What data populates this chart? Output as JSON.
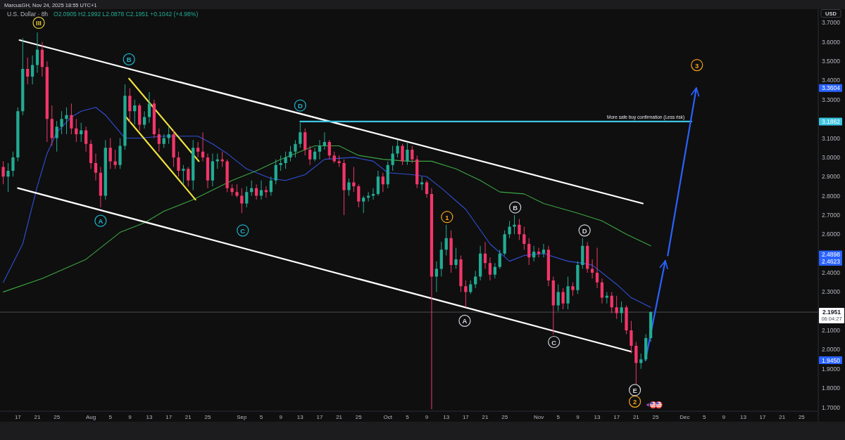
{
  "chart_data": {
    "type": "candlestick",
    "title": "U.S. Dollar · 8h",
    "subtitle": "O2.0905 H2.1992 L2.0878 C2.1951 +0.1042 (+4.98%)",
    "ylabel": "USD",
    "annotations": [
      "MarcusGH, Nov 24, 2025 18:55 UTC+1",
      {
        "text": "More safe buy confirmation (Less risk)",
        "x": "2025-11-23",
        "y": 3.1862
      },
      {
        "text": "III",
        "x": "2025-07-21T07:00",
        "y": 3.7
      },
      {
        "text": "A",
        "x": "2025-08-03",
        "y": 2.67
      },
      {
        "text": "B",
        "x": "2025-08-08T20:00",
        "y": 3.51
      },
      {
        "text": "C",
        "x": "2025-09-01T05:00",
        "y": 2.62
      },
      {
        "text": "D",
        "x": "2025-09-13",
        "y": 3.27
      },
      {
        "text": "1",
        "x": "2025-10-13T04:00",
        "y": 2.69
      },
      {
        "text": "2",
        "x": "2025-11-20T18:00",
        "y": 1.73
      },
      {
        "text": "3",
        "x": "2025-12-03T12:00",
        "y": 3.48
      },
      {
        "text": "A",
        "x": "2025-10-16T19:00",
        "y": 2.15
      },
      {
        "text": "B",
        "x": "2025-10-27T04:00",
        "y": 2.74
      },
      {
        "text": "C",
        "x": "2025-11-04T03:00",
        "y": 2.04
      },
      {
        "text": "D",
        "x": "2025-11-10T10:00",
        "y": 2.62
      },
      {
        "text": "E",
        "x": "2025-11-20T18:00",
        "y": 1.79
      }
    ],
    "x": [
      "2025-07-14",
      "2025-07-15",
      "2025-07-16",
      "2025-07-17",
      "2025-07-18",
      "2025-07-19",
      "2025-07-20",
      "2025-07-21",
      "2025-07-22",
      "2025-07-23",
      "2025-07-24",
      "2025-07-25",
      "2025-07-26",
      "2025-07-27",
      "2025-07-28",
      "2025-07-29",
      "2025-07-30",
      "2025-07-31",
      "2025-08-01",
      "2025-08-02",
      "2025-08-03",
      "2025-08-04",
      "2025-08-05",
      "2025-08-06",
      "2025-08-07",
      "2025-08-08",
      "2025-08-09",
      "2025-08-10",
      "2025-08-11",
      "2025-08-12",
      "2025-08-13",
      "2025-08-14",
      "2025-08-15",
      "2025-08-16",
      "2025-08-17",
      "2025-08-18",
      "2025-08-19",
      "2025-08-20",
      "2025-08-21",
      "2025-08-22",
      "2025-08-23",
      "2025-08-24",
      "2025-08-25",
      "2025-08-26",
      "2025-08-27",
      "2025-08-28",
      "2025-08-29",
      "2025-08-30",
      "2025-08-31",
      "2025-09-01",
      "2025-09-02",
      "2025-09-03",
      "2025-09-04",
      "2025-09-05",
      "2025-09-06",
      "2025-09-07",
      "2025-09-08",
      "2025-09-09",
      "2025-09-10",
      "2025-09-11",
      "2025-09-12",
      "2025-09-13",
      "2025-09-14",
      "2025-09-15",
      "2025-09-16",
      "2025-09-17",
      "2025-09-18",
      "2025-09-19",
      "2025-09-20",
      "2025-09-21",
      "2025-09-22",
      "2025-09-23",
      "2025-09-24",
      "2025-09-25",
      "2025-09-26",
      "2025-09-27",
      "2025-09-28",
      "2025-09-29",
      "2025-09-30",
      "2025-10-01",
      "2025-10-02",
      "2025-10-03",
      "2025-10-04",
      "2025-10-05",
      "2025-10-06",
      "2025-10-07",
      "2025-10-08",
      "2025-10-09",
      "2025-10-10",
      "2025-10-11",
      "2025-10-12",
      "2025-10-13",
      "2025-10-14",
      "2025-10-15",
      "2025-10-16",
      "2025-10-17",
      "2025-10-18",
      "2025-10-19",
      "2025-10-20",
      "2025-10-21",
      "2025-10-22",
      "2025-10-23",
      "2025-10-24",
      "2025-10-25",
      "2025-10-26",
      "2025-10-27",
      "2025-10-28",
      "2025-10-29",
      "2025-10-30",
      "2025-10-31",
      "2025-11-01",
      "2025-11-02",
      "2025-11-03",
      "2025-11-04",
      "2025-11-05",
      "2025-11-06",
      "2025-11-07",
      "2025-11-08",
      "2025-11-09",
      "2025-11-10",
      "2025-11-11",
      "2025-11-12",
      "2025-11-13",
      "2025-11-14",
      "2025-11-15",
      "2025-11-16",
      "2025-11-17",
      "2025-11-18",
      "2025-11-19",
      "2025-11-20",
      "2025-11-21",
      "2025-11-22",
      "2025-11-23",
      "2025-11-24"
    ],
    "ohlc": [
      [
        2.95,
        2.98,
        2.86,
        2.9
      ],
      [
        2.9,
        2.97,
        2.82,
        2.93
      ],
      [
        2.93,
        3.03,
        2.9,
        3.0
      ],
      [
        3.0,
        3.26,
        2.98,
        3.24
      ],
      [
        3.24,
        3.62,
        3.22,
        3.46
      ],
      [
        3.46,
        3.52,
        3.38,
        3.42
      ],
      [
        3.42,
        3.53,
        3.38,
        3.48
      ],
      [
        3.48,
        3.65,
        3.44,
        3.56
      ],
      [
        3.56,
        3.6,
        3.42,
        3.47
      ],
      [
        3.47,
        3.5,
        3.08,
        3.2
      ],
      [
        3.2,
        3.27,
        3.06,
        3.1
      ],
      [
        3.1,
        3.19,
        3.03,
        3.16
      ],
      [
        3.16,
        3.24,
        3.12,
        3.2
      ],
      [
        3.2,
        3.26,
        3.12,
        3.22
      ],
      [
        3.22,
        3.28,
        3.12,
        3.15
      ],
      [
        3.15,
        3.2,
        3.08,
        3.12
      ],
      [
        3.12,
        3.18,
        3.08,
        3.14
      ],
      [
        3.14,
        3.16,
        3.03,
        3.07
      ],
      [
        3.07,
        3.09,
        2.94,
        2.97
      ],
      [
        2.97,
        3.02,
        2.88,
        2.92
      ],
      [
        2.92,
        2.95,
        2.74,
        2.8
      ],
      [
        2.8,
        3.09,
        2.78,
        3.05
      ],
      [
        3.05,
        3.1,
        2.94,
        2.98
      ],
      [
        2.98,
        3.04,
        2.94,
        2.96
      ],
      [
        2.96,
        3.1,
        2.94,
        3.06
      ],
      [
        3.06,
        3.38,
        3.04,
        3.32
      ],
      [
        3.32,
        3.36,
        3.18,
        3.24
      ],
      [
        3.24,
        3.3,
        3.17,
        3.27
      ],
      [
        3.27,
        3.28,
        3.14,
        3.17
      ],
      [
        3.17,
        3.24,
        3.15,
        3.21
      ],
      [
        3.21,
        3.34,
        3.18,
        3.28
      ],
      [
        3.28,
        3.3,
        3.1,
        3.12
      ],
      [
        3.12,
        3.15,
        3.03,
        3.07
      ],
      [
        3.07,
        3.12,
        3.05,
        3.1
      ],
      [
        3.1,
        3.16,
        3.07,
        3.12
      ],
      [
        3.12,
        3.14,
        2.95,
        3.0
      ],
      [
        3.0,
        3.03,
        2.9,
        2.93
      ],
      [
        2.93,
        2.96,
        2.86,
        2.94
      ],
      [
        2.94,
        2.95,
        2.85,
        2.88
      ],
      [
        2.88,
        3.09,
        2.83,
        3.05
      ],
      [
        3.05,
        3.08,
        3.0,
        3.03
      ],
      [
        3.03,
        3.13,
        2.98,
        3.0
      ],
      [
        3.0,
        3.02,
        2.84,
        2.88
      ],
      [
        2.88,
        3.02,
        2.85,
        2.98
      ],
      [
        2.98,
        3.02,
        2.94,
        2.99
      ],
      [
        2.99,
        3.03,
        2.95,
        2.98
      ],
      [
        2.98,
        2.99,
        2.82,
        2.84
      ],
      [
        2.84,
        2.86,
        2.8,
        2.82
      ],
      [
        2.82,
        2.86,
        2.79,
        2.8
      ],
      [
        2.8,
        2.84,
        2.71,
        2.76
      ],
      [
        2.76,
        2.85,
        2.74,
        2.82
      ],
      [
        2.82,
        2.88,
        2.8,
        2.84
      ],
      [
        2.84,
        2.86,
        2.78,
        2.8
      ],
      [
        2.8,
        2.88,
        2.78,
        2.83
      ],
      [
        2.83,
        2.85,
        2.79,
        2.82
      ],
      [
        2.82,
        2.9,
        2.8,
        2.88
      ],
      [
        2.88,
        2.99,
        2.86,
        2.96
      ],
      [
        2.96,
        3.01,
        2.93,
        2.97
      ],
      [
        2.97,
        3.03,
        2.94,
        3.0
      ],
      [
        3.0,
        3.06,
        2.98,
        3.03
      ],
      [
        3.03,
        3.09,
        3.0,
        3.07
      ],
      [
        3.07,
        3.18,
        3.05,
        3.13
      ],
      [
        3.13,
        3.15,
        3.01,
        3.04
      ],
      [
        3.04,
        3.06,
        2.96,
        2.99
      ],
      [
        2.99,
        3.05,
        2.98,
        3.03
      ],
      [
        3.03,
        3.09,
        2.99,
        3.06
      ],
      [
        3.06,
        3.13,
        3.04,
        3.08
      ],
      [
        3.08,
        3.09,
        2.99,
        3.01
      ],
      [
        3.01,
        3.03,
        2.97,
        2.98
      ],
      [
        2.98,
        3.01,
        2.95,
        2.97
      ],
      [
        2.97,
        2.99,
        2.7,
        2.83
      ],
      [
        2.83,
        2.89,
        2.8,
        2.87
      ],
      [
        2.87,
        2.95,
        2.82,
        2.85
      ],
      [
        2.85,
        2.86,
        2.74,
        2.77
      ],
      [
        2.77,
        2.8,
        2.71,
        2.79
      ],
      [
        2.79,
        2.82,
        2.77,
        2.8
      ],
      [
        2.8,
        2.84,
        2.78,
        2.81
      ],
      [
        2.81,
        2.93,
        2.8,
        2.9
      ],
      [
        2.9,
        2.92,
        2.82,
        2.86
      ],
      [
        2.86,
        2.98,
        2.84,
        2.96
      ],
      [
        2.96,
        3.06,
        2.93,
        3.02
      ],
      [
        3.02,
        3.09,
        3.0,
        3.06
      ],
      [
        3.06,
        3.07,
        2.96,
        2.98
      ],
      [
        2.98,
        3.08,
        2.96,
        3.04
      ],
      [
        3.04,
        3.06,
        2.97,
        2.99
      ],
      [
        2.99,
        3.01,
        2.84,
        2.86
      ],
      [
        2.86,
        2.9,
        2.83,
        2.87
      ],
      [
        2.87,
        2.88,
        2.79,
        2.81
      ],
      [
        2.81,
        2.84,
        1.69,
        2.38
      ],
      [
        2.38,
        2.46,
        2.3,
        2.42
      ],
      [
        2.42,
        2.56,
        2.38,
        2.52
      ],
      [
        2.52,
        2.65,
        2.49,
        2.58
      ],
      [
        2.58,
        2.62,
        2.4,
        2.44
      ],
      [
        2.44,
        2.53,
        2.42,
        2.47
      ],
      [
        2.47,
        2.49,
        2.3,
        2.33
      ],
      [
        2.33,
        2.36,
        2.22,
        2.3
      ],
      [
        2.3,
        2.36,
        2.29,
        2.34
      ],
      [
        2.34,
        2.41,
        2.32,
        2.38
      ],
      [
        2.38,
        2.54,
        2.36,
        2.5
      ],
      [
        2.5,
        2.56,
        2.42,
        2.45
      ],
      [
        2.45,
        2.48,
        2.36,
        2.39
      ],
      [
        2.39,
        2.45,
        2.37,
        2.43
      ],
      [
        2.43,
        2.52,
        2.42,
        2.5
      ],
      [
        2.5,
        2.62,
        2.49,
        2.6
      ],
      [
        2.6,
        2.67,
        2.58,
        2.64
      ],
      [
        2.64,
        2.7,
        2.6,
        2.65
      ],
      [
        2.65,
        2.68,
        2.57,
        2.6
      ],
      [
        2.6,
        2.64,
        2.52,
        2.55
      ],
      [
        2.55,
        2.58,
        2.44,
        2.48
      ],
      [
        2.48,
        2.54,
        2.46,
        2.51
      ],
      [
        2.51,
        2.53,
        2.48,
        2.5
      ],
      [
        2.5,
        2.55,
        2.48,
        2.52
      ],
      [
        2.52,
        2.54,
        2.33,
        2.36
      ],
      [
        2.36,
        2.38,
        2.08,
        2.23
      ],
      [
        2.23,
        2.34,
        2.2,
        2.3
      ],
      [
        2.3,
        2.32,
        2.21,
        2.24
      ],
      [
        2.24,
        2.38,
        2.21,
        2.33
      ],
      [
        2.33,
        2.35,
        2.28,
        2.31
      ],
      [
        2.31,
        2.46,
        2.29,
        2.44
      ],
      [
        2.44,
        2.58,
        2.42,
        2.54
      ],
      [
        2.54,
        2.56,
        2.4,
        2.42
      ],
      [
        2.42,
        2.47,
        2.37,
        2.4
      ],
      [
        2.4,
        2.53,
        2.32,
        2.35
      ],
      [
        2.35,
        2.37,
        2.24,
        2.27
      ],
      [
        2.27,
        2.3,
        2.24,
        2.28
      ],
      [
        2.28,
        2.3,
        2.19,
        2.22
      ],
      [
        2.22,
        2.28,
        2.16,
        2.19
      ],
      [
        2.19,
        2.25,
        2.14,
        2.22
      ],
      [
        2.22,
        2.23,
        2.08,
        2.1
      ],
      [
        2.1,
        2.15,
        1.98,
        2.02
      ],
      [
        2.02,
        2.04,
        1.82,
        1.93
      ],
      [
        1.93,
        1.98,
        1.9,
        1.95
      ],
      [
        1.95,
        2.08,
        1.94,
        2.06
      ],
      [
        2.06,
        2.1992,
        2.04,
        2.1951
      ]
    ],
    "colors": [
      "#f23669",
      "#22ab94",
      "#22ab94",
      "#22ab94",
      "#22ab94",
      "#f23669",
      "#22ab94",
      "#22ab94",
      "#f23669",
      "#f23669",
      "#f23669",
      "#22ab94",
      "#22ab94",
      "#22ab94",
      "#f23669",
      "#f23669",
      "#22ab94",
      "#f23669",
      "#f23669",
      "#f23669",
      "#f23669",
      "#22ab94",
      "#f23669",
      "#f23669",
      "#22ab94",
      "#22ab94",
      "#f23669",
      "#22ab94",
      "#f23669",
      "#22ab94",
      "#22ab94",
      "#f23669",
      "#f23669",
      "#22ab94",
      "#22ab94",
      "#f23669",
      "#f23669",
      "#22ab94",
      "#f23669",
      "#22ab94",
      "#f23669",
      "#f23669",
      "#f23669",
      "#22ab94",
      "#22ab94",
      "#f23669",
      "#f23669",
      "#f23669",
      "#f23669",
      "#f23669",
      "#22ab94",
      "#22ab94",
      "#f23669",
      "#22ab94",
      "#f23669",
      "#22ab94",
      "#22ab94",
      "#22ab94",
      "#22ab94",
      "#22ab94",
      "#22ab94",
      "#22ab94",
      "#f23669",
      "#f23669",
      "#22ab94",
      "#22ab94",
      "#22ab94",
      "#f23669",
      "#f23669",
      "#f23669",
      "#f23669",
      "#22ab94",
      "#f23669",
      "#f23669",
      "#22ab94",
      "#22ab94",
      "#22ab94",
      "#22ab94",
      "#f23669",
      "#22ab94",
      "#22ab94",
      "#22ab94",
      "#f23669",
      "#22ab94",
      "#f23669",
      "#f23669",
      "#22ab94",
      "#f23669",
      "#f23669",
      "#22ab94",
      "#22ab94",
      "#22ab94",
      "#f23669",
      "#22ab94",
      "#f23669",
      "#f23669",
      "#22ab94",
      "#22ab94",
      "#22ab94",
      "#f23669",
      "#f23669",
      "#22ab94",
      "#22ab94",
      "#22ab94",
      "#22ab94",
      "#22ab94",
      "#f23669",
      "#f23669",
      "#f23669",
      "#22ab94",
      "#f23669",
      "#22ab94",
      "#f23669",
      "#f23669",
      "#22ab94",
      "#f23669",
      "#22ab94",
      "#f23669",
      "#22ab94",
      "#22ab94",
      "#f23669",
      "#f23669",
      "#f23669",
      "#f23669",
      "#22ab94",
      "#f23669",
      "#f23669",
      "#22ab94",
      "#f23669",
      "#f23669",
      "#f23669",
      "#22ab94",
      "#22ab94",
      "#22ab94"
    ],
    "series": [
      {
        "type": "line",
        "color": "#3050d8",
        "x": [
          "2025-07-14",
          "2025-07-18",
          "2025-07-21",
          "2025-07-23",
          "2025-07-25",
          "2025-07-28",
          "2025-07-30",
          "2025-08-02",
          "2025-08-04",
          "2025-08-06",
          "2025-08-08",
          "2025-08-11",
          "2025-08-16",
          "2025-08-19",
          "2025-08-23",
          "2025-08-26",
          "2025-08-29",
          "2025-09-02",
          "2025-09-07",
          "2025-09-10",
          "2025-09-14",
          "2025-09-18",
          "2025-09-24",
          "2025-09-28",
          "2025-10-01",
          "2025-10-06",
          "2025-10-09",
          "2025-10-12",
          "2025-10-17",
          "2025-10-22",
          "2025-10-26",
          "2025-10-29",
          "2025-11-02",
          "2025-11-07",
          "2025-11-10",
          "2025-11-12",
          "2025-11-17",
          "2025-11-20",
          "2025-11-24"
        ],
        "values": [
          2.35,
          2.55,
          2.85,
          3.02,
          3.13,
          3.21,
          3.24,
          3.26,
          3.22,
          3.16,
          3.1,
          3.1,
          3.11,
          3.11,
          3.11,
          3.07,
          3.02,
          2.94,
          2.89,
          2.88,
          2.91,
          2.99,
          3.0,
          2.98,
          2.92,
          2.91,
          2.9,
          2.84,
          2.73,
          2.55,
          2.46,
          2.49,
          2.5,
          2.46,
          2.45,
          2.44,
          2.34,
          2.27,
          2.22
        ]
      },
      {
        "type": "line",
        "color": "#3da545",
        "x": [
          "2025-07-14",
          "2025-07-22",
          "2025-07-31",
          "2025-08-07",
          "2025-08-12",
          "2025-08-16",
          "2025-08-22",
          "2025-08-30",
          "2025-09-04",
          "2025-09-09",
          "2025-09-11",
          "2025-09-16",
          "2025-09-21",
          "2025-09-25",
          "2025-09-30",
          "2025-10-05",
          "2025-10-10",
          "2025-10-15",
          "2025-10-20",
          "2025-10-24",
          "2025-10-29",
          "2025-11-02",
          "2025-11-09",
          "2025-11-14",
          "2025-11-19",
          "2025-11-24"
        ],
        "values": [
          2.3,
          2.37,
          2.47,
          2.61,
          2.66,
          2.72,
          2.78,
          2.88,
          2.93,
          2.99,
          3.01,
          3.06,
          3.06,
          3.01,
          2.99,
          2.98,
          2.98,
          2.94,
          2.88,
          2.82,
          2.81,
          2.76,
          2.71,
          2.67,
          2.6,
          2.54
        ]
      },
      {
        "type": "line",
        "color": "#ffffff",
        "x": [
          "2025-07-17T08:00",
          "2025-11-22T09:00"
        ],
        "values": [
          3.61,
          2.76
        ]
      },
      {
        "type": "line",
        "color": "#ffffff",
        "x": [
          "2025-07-17",
          "2025-11-20"
        ],
        "values": [
          2.84,
          1.99
        ]
      },
      {
        "type": "line",
        "color": "#f2e23c",
        "x": [
          "2025-08-08T20:00",
          "2025-08-23T04:00"
        ],
        "values": [
          3.41,
          2.98
        ]
      },
      {
        "type": "line",
        "color": "#f2e23c",
        "x": [
          "2025-08-08T05:00",
          "2025-08-22T12:00"
        ],
        "values": [
          3.21,
          2.78
        ]
      },
      {
        "type": "line",
        "color": "#3bc4e0",
        "x": [
          "2025-09-13",
          "2025-12-02T09:00"
        ],
        "values": [
          3.1862,
          3.1862
        ]
      },
      {
        "type": "line",
        "color": "#2962ff",
        "x": [
          "2025-11-22T22:00",
          "2025-11-27"
        ],
        "values": [
          1.945,
          2.4623
        ]
      },
      {
        "type": "line",
        "color": "#2962ff",
        "x": [
          "2025-11-27T12:00",
          "2025-12-03T09:00"
        ],
        "values": [
          2.4898,
          3.3604
        ]
      },
      {
        "type": "scatter",
        "color": "#e5c83c",
        "marker": "circle",
        "x": [
          "2025-07-21T07:00"
        ],
        "values": [
          3.7
        ]
      },
      {
        "type": "scatter",
        "color": "#1fb3cc",
        "marker": "circle",
        "x": [
          "2025-08-03",
          "2025-08-08T20:00",
          "2025-09-01T05:00",
          "2025-09-13"
        ],
        "values": [
          2.67,
          3.51,
          2.62,
          3.27
        ]
      },
      {
        "type": "scatter",
        "color": "#f7a21b",
        "marker": "circle",
        "x": [
          "2025-10-13T04:00",
          "2025-11-20T18:00",
          "2025-12-03T12:00"
        ],
        "values": [
          2.69,
          1.73,
          3.48
        ]
      },
      {
        "type": "scatter",
        "color": "#d1d4dc",
        "marker": "circle",
        "x": [
          "2025-10-16T19:00",
          "2025-10-27T04:00",
          "2025-11-04T03:00",
          "2025-11-10T10:00",
          "2025-11-20T18:00"
        ],
        "values": [
          2.15,
          2.74,
          2.04,
          2.62,
          1.79
        ]
      }
    ],
    "ref_lines": [
      {
        "axis": "y",
        "value": 2.1951,
        "label": "2.1951\n06:04:27",
        "color": "#4a4d57"
      }
    ],
    "xlim": [
      "2025-07-13T08:00",
      "2025-12-28T10:00"
    ],
    "xticks": [
      {
        "value": "2025-07-17",
        "label": "17"
      },
      {
        "value": "2025-07-21",
        "label": "21"
      },
      {
        "value": "2025-07-25",
        "label": "25"
      },
      {
        "value": "2025-08-01",
        "label": "Aug"
      },
      {
        "value": "2025-08-05",
        "label": "5"
      },
      {
        "value": "2025-08-09",
        "label": "9"
      },
      {
        "value": "2025-08-13",
        "label": "13"
      },
      {
        "value": "2025-08-17",
        "label": "17"
      },
      {
        "value": "2025-08-21",
        "label": "21"
      },
      {
        "value": "2025-08-25",
        "label": "25"
      },
      {
        "value": "2025-09-01",
        "label": "Sep"
      },
      {
        "value": "2025-09-05",
        "label": "5"
      },
      {
        "value": "2025-09-09",
        "label": "9"
      },
      {
        "value": "2025-09-13",
        "label": "13"
      },
      {
        "value": "2025-09-17",
        "label": "17"
      },
      {
        "value": "2025-09-21",
        "label": "21"
      },
      {
        "value": "2025-09-25",
        "label": "25"
      },
      {
        "value": "2025-10-01",
        "label": "Oct"
      },
      {
        "value": "2025-10-05",
        "label": "5"
      },
      {
        "value": "2025-10-09",
        "label": "9"
      },
      {
        "value": "2025-10-13",
        "label": "13"
      },
      {
        "value": "2025-10-17",
        "label": "17"
      },
      {
        "value": "2025-10-21",
        "label": "21"
      },
      {
        "value": "2025-10-25",
        "label": "25"
      },
      {
        "value": "2025-11-01",
        "label": "Nov"
      },
      {
        "value": "2025-11-05",
        "label": "5"
      },
      {
        "value": "2025-11-09",
        "label": "9"
      },
      {
        "value": "2025-11-13",
        "label": "13"
      },
      {
        "value": "2025-11-17",
        "label": "17"
      },
      {
        "value": "2025-11-21",
        "label": "21"
      },
      {
        "value": "2025-11-25",
        "label": "25"
      },
      {
        "value": "2025-12-01",
        "label": "Dec"
      },
      {
        "value": "2025-12-05",
        "label": "5"
      },
      {
        "value": "2025-12-09",
        "label": "9"
      },
      {
        "value": "2025-12-13",
        "label": "13"
      },
      {
        "value": "2025-12-17",
        "label": "17"
      },
      {
        "value": "2025-12-21",
        "label": "21"
      },
      {
        "value": "2025-12-25",
        "label": "25"
      }
    ],
    "ylim": [
      1.68,
      3.76
    ],
    "yticks": [
      {
        "value": 3.7,
        "label": "3.7000"
      },
      {
        "value": 3.6,
        "label": "3.6000"
      },
      {
        "value": 3.5,
        "label": "3.5000"
      },
      {
        "value": 3.4,
        "label": "3.4000"
      },
      3.3604,
      {
        "value": 3.3,
        "label": "3.3000"
      },
      3.1862,
      {
        "value": 3.1,
        "label": "3.1000"
      },
      {
        "value": 3.0,
        "label": "3.0000"
      },
      {
        "value": 2.9,
        "label": "2.9000"
      },
      {
        "value": 2.8,
        "label": "2.8000"
      },
      {
        "value": 2.7,
        "label": "2.7000"
      },
      {
        "value": 2.6,
        "label": "2.6000"
      },
      2.4898,
      2.4623,
      {
        "value": 2.4,
        "label": "2.4000"
      },
      {
        "value": 2.3,
        "label": "2.3000"
      },
      {
        "value": 2.1,
        "label": "2.1000"
      },
      {
        "value": 2.0,
        "label": "2.0000"
      },
      {
        "value": 1.945,
        "label": "1.9450"
      },
      {
        "value": 1.9,
        "label": "1.9000"
      },
      {
        "value": 1.8,
        "label": "1.8000"
      },
      {
        "value": 1.7,
        "label": "1.7000"
      }
    ]
  }
}
